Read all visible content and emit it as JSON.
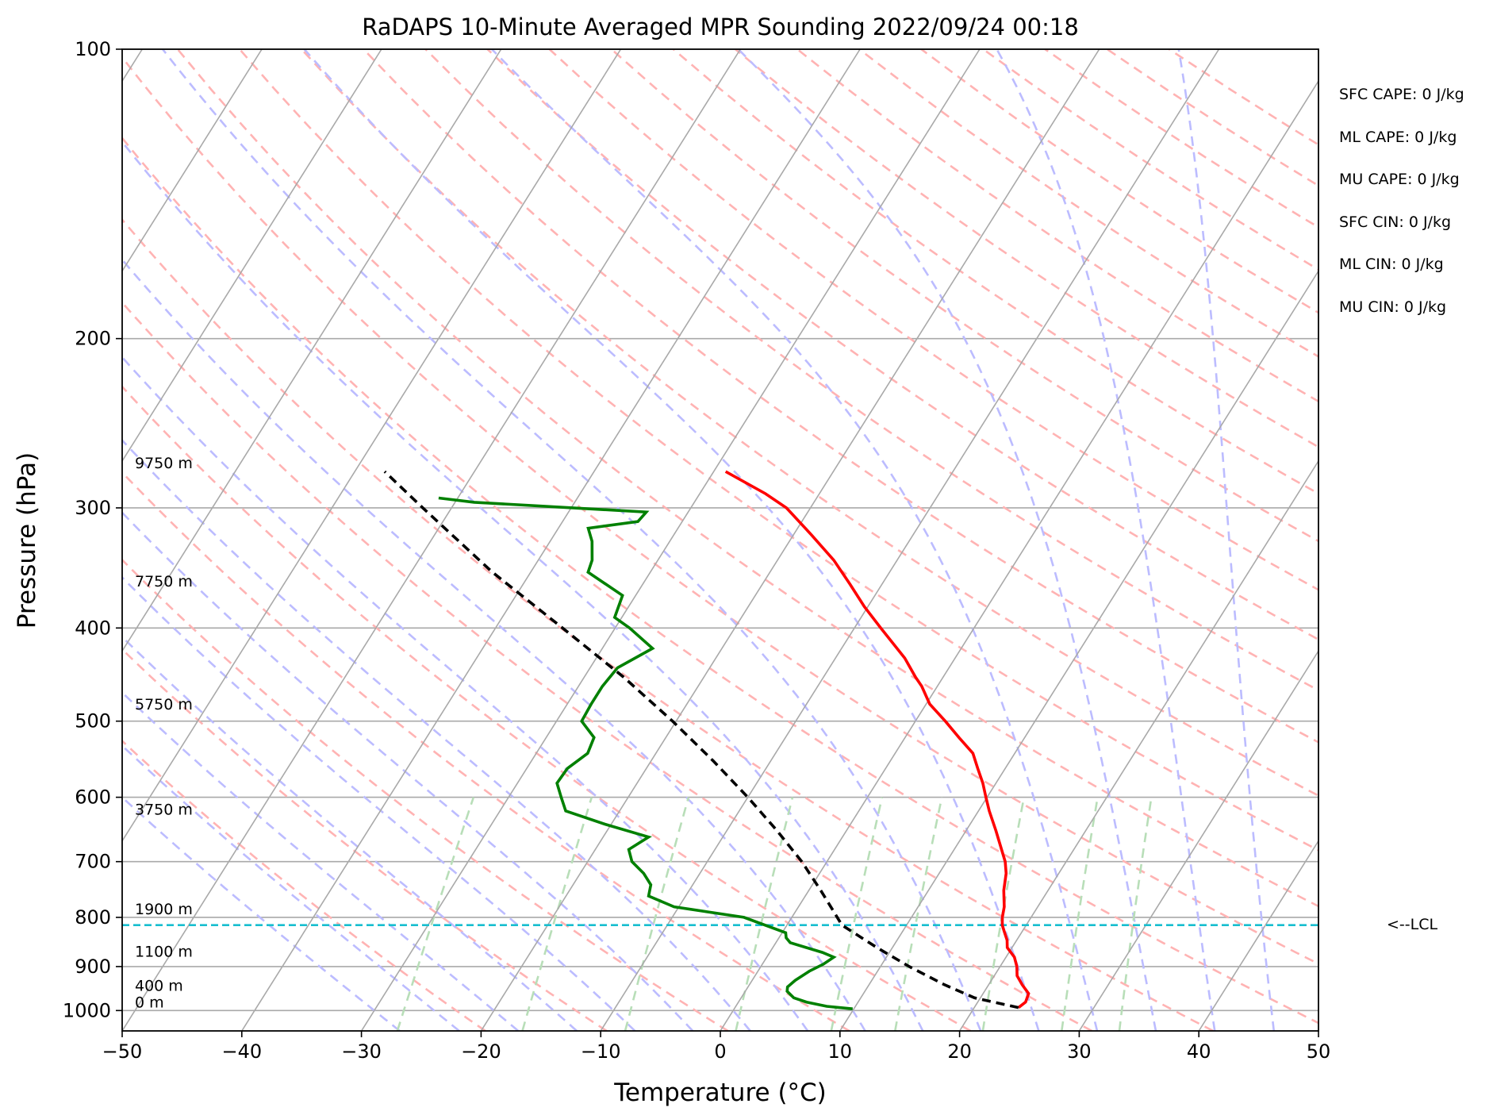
{
  "chart_data": {
    "type": "line",
    "title": "RaDAPS 10-Minute Averaged MPR Sounding 2022/09/24 00:18",
    "xlabel": "Temperature (°C)",
    "ylabel": "Pressure (hPa)",
    "xlim": [
      -50,
      50
    ],
    "ylim": [
      1050,
      100
    ],
    "y_scale": "log",
    "grid": true,
    "x_ticks": [
      "−50",
      "−40",
      "−30",
      "−20",
      "−10",
      "0",
      "10",
      "20",
      "30",
      "40",
      "50"
    ],
    "y_ticks": [
      "100",
      "200",
      "300",
      "400",
      "500",
      "600",
      "700",
      "800",
      "900",
      "1000"
    ],
    "background_lines": [
      "dry adiabats",
      "moist adiabats",
      "mixing ratio lines",
      "skewed isotherms"
    ],
    "series": [
      {
        "role": "temperature",
        "color": "#ff0000",
        "points": [
          [
            993,
            23.7
          ],
          [
            980,
            24.0
          ],
          [
            960,
            23.8
          ],
          [
            940,
            22.8
          ],
          [
            920,
            21.9
          ],
          [
            900,
            21.4
          ],
          [
            880,
            20.7
          ],
          [
            860,
            19.6
          ],
          [
            845,
            19.2
          ],
          [
            830,
            18.6
          ],
          [
            815,
            18.0
          ],
          [
            800,
            17.6
          ],
          [
            780,
            17.2
          ],
          [
            750,
            16.3
          ],
          [
            720,
            15.6
          ],
          [
            700,
            14.9
          ],
          [
            650,
            12.5
          ],
          [
            620,
            10.9
          ],
          [
            600,
            9.9
          ],
          [
            580,
            8.9
          ],
          [
            560,
            7.7
          ],
          [
            540,
            6.5
          ],
          [
            520,
            4.5
          ],
          [
            500,
            2.5
          ],
          [
            480,
            0.3
          ],
          [
            460,
            -1.3
          ],
          [
            450,
            -2.3
          ],
          [
            430,
            -4.2
          ],
          [
            400,
            -7.8
          ],
          [
            380,
            -10.3
          ],
          [
            360,
            -12.7
          ],
          [
            340,
            -15.3
          ],
          [
            320,
            -18.5
          ],
          [
            300,
            -22.0
          ],
          [
            290,
            -24.5
          ],
          [
            275,
            -29.0
          ]
        ]
      },
      {
        "role": "dewpoint",
        "color": "#008000",
        "points": [
          [
            996,
            9.9
          ],
          [
            990,
            7.6
          ],
          [
            980,
            5.7
          ],
          [
            970,
            4.4
          ],
          [
            955,
            3.5
          ],
          [
            945,
            3.3
          ],
          [
            930,
            3.6
          ],
          [
            910,
            4.3
          ],
          [
            895,
            5.1
          ],
          [
            880,
            5.6
          ],
          [
            870,
            4.4
          ],
          [
            860,
            2.8
          ],
          [
            850,
            1.2
          ],
          [
            840,
            0.6
          ],
          [
            830,
            0.3
          ],
          [
            800,
            -4.0
          ],
          [
            780,
            -10.4
          ],
          [
            760,
            -13.1
          ],
          [
            740,
            -13.5
          ],
          [
            720,
            -14.7
          ],
          [
            700,
            -16.3
          ],
          [
            680,
            -17.2
          ],
          [
            660,
            -16.2
          ],
          [
            640,
            -20.5
          ],
          [
            620,
            -24.5
          ],
          [
            600,
            -25.6
          ],
          [
            580,
            -26.7
          ],
          [
            560,
            -26.6
          ],
          [
            540,
            -25.7
          ],
          [
            520,
            -26.0
          ],
          [
            500,
            -27.9
          ],
          [
            480,
            -28.0
          ],
          [
            460,
            -28.0
          ],
          [
            440,
            -27.7
          ],
          [
            420,
            -25.8
          ],
          [
            400,
            -28.8
          ],
          [
            390,
            -30.6
          ],
          [
            370,
            -31.1
          ],
          [
            350,
            -35.2
          ],
          [
            340,
            -35.5
          ],
          [
            325,
            -36.5
          ],
          [
            315,
            -37.5
          ],
          [
            310,
            -33.7
          ],
          [
            303,
            -33.5
          ],
          [
            296,
            -48.4
          ],
          [
            293,
            -51.6
          ]
        ]
      },
      {
        "role": "parcel",
        "color": "#000000",
        "points": [
          [
            993,
            23.7
          ],
          [
            970,
            19.5
          ],
          [
            940,
            16.3
          ],
          [
            900,
            12.4
          ],
          [
            860,
            8.7
          ],
          [
            815,
            4.6
          ],
          [
            800,
            3.8
          ],
          [
            750,
            1.0
          ],
          [
            700,
            -2.1
          ],
          [
            650,
            -5.8
          ],
          [
            600,
            -10.0
          ],
          [
            550,
            -14.8
          ],
          [
            500,
            -20.3
          ],
          [
            450,
            -26.7
          ],
          [
            400,
            -34.4
          ],
          [
            350,
            -43.2
          ],
          [
            300,
            -52.4
          ],
          [
            275,
            -57.5
          ]
        ]
      }
    ],
    "lcl": {
      "pressure": 815,
      "label": "<--LCL"
    },
    "height_labels": [
      {
        "pressure": 1000,
        "label": "0 m"
      },
      {
        "pressure": 961,
        "label": "400 m"
      },
      {
        "pressure": 886,
        "label": "1100 m"
      },
      {
        "pressure": 800,
        "label": "1900 m"
      },
      {
        "pressure": 630,
        "label": "3750 m"
      },
      {
        "pressure": 490,
        "label": "5750 m"
      },
      {
        "pressure": 365,
        "label": "7750 m"
      },
      {
        "pressure": 275,
        "label": "9750 m"
      }
    ],
    "indices": [
      "SFC CAPE: 0 J/kg",
      "ML CAPE: 0 J/kg",
      "MU CAPE: 0 J/kg",
      "SFC CIN: 0 J/kg",
      "ML CIN: 0 J/kg",
      "MU CIN: 0 J/kg"
    ],
    "colors": {
      "isotherm": "#a9a9a9",
      "dry_adiabat": "#ffb3b3",
      "moist_adiabat": "#bcbcff",
      "mixing_ratio": "#b8deb8",
      "lcl_line": "#17becf"
    }
  }
}
